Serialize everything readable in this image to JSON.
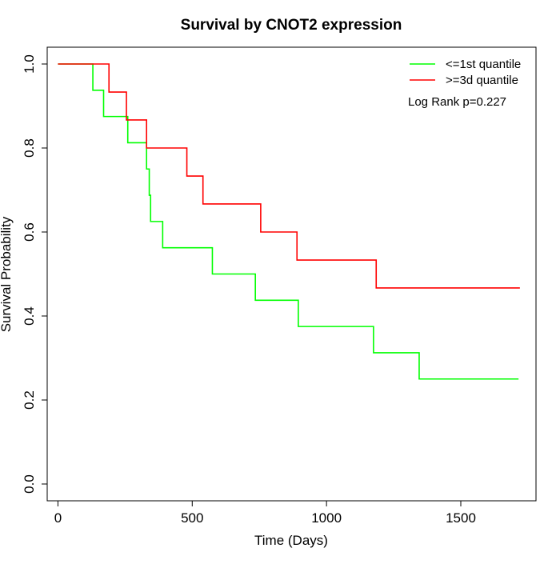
{
  "chart_data": {
    "type": "line",
    "step": true,
    "title": "Survival by CNOT2 expression",
    "xlabel": "Time (Days)",
    "ylabel": "Survival Probability",
    "xlim": [
      -40,
      1780
    ],
    "ylim": [
      -0.04,
      1.04
    ],
    "xticks": [
      0,
      500,
      1000,
      1500
    ],
    "yticks": [
      0.0,
      0.2,
      0.4,
      0.6,
      0.8,
      1.0
    ],
    "xtick_labels": [
      "0",
      "500",
      "1000",
      "1500"
    ],
    "ytick_labels": [
      "0.0",
      "0.2",
      "0.4",
      "0.6",
      "0.8",
      "1.0"
    ],
    "grid": false,
    "legend_position": "top-right",
    "annotation": "Log Rank p=0.227",
    "series": [
      {
        "name": "<=1st quantile",
        "color": "#00ff00",
        "x": [
          0,
          130,
          170,
          260,
          330,
          340,
          345,
          350,
          390,
          575,
          735,
          895,
          1175,
          1345,
          1715
        ],
        "y": [
          1.0,
          0.9375,
          0.875,
          0.8125,
          0.75,
          0.6875,
          0.625,
          0.625,
          0.5625,
          0.5,
          0.4375,
          0.375,
          0.3125,
          0.25,
          0.25
        ]
      },
      {
        "name": ">=3d quantile",
        "color": "#ff0000",
        "x": [
          0,
          190,
          255,
          330,
          480,
          540,
          755,
          890,
          1185,
          1720
        ],
        "y": [
          1.0,
          0.9333,
          0.8667,
          0.8,
          0.7333,
          0.6667,
          0.6,
          0.5333,
          0.4667,
          0.4667
        ]
      }
    ]
  }
}
